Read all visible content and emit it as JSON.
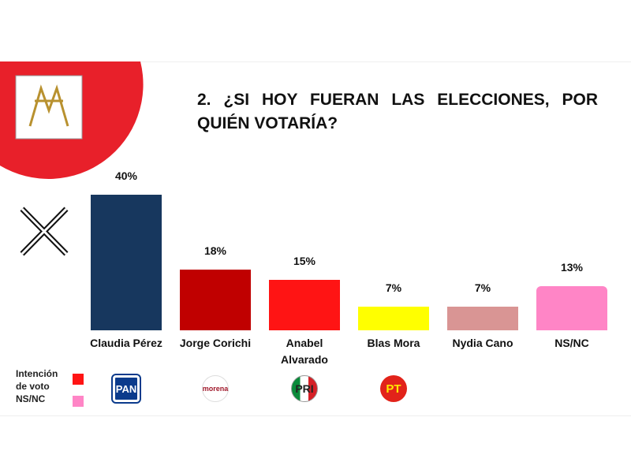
{
  "chart_data": {
    "type": "bar",
    "title": "2. ¿SI HOY FUERAN LAS ELECCIONES, POR QUIÉN VOTARÍA?",
    "categories": [
      "Claudia Pérez",
      "Jorge Corichi",
      "Anabel Alvarado",
      "Blas Mora",
      "Nydia Cano",
      "NS/NC"
    ],
    "values": [
      40,
      18,
      15,
      7,
      7,
      13
    ],
    "value_labels": [
      "40%",
      "18%",
      "15%",
      "7%",
      "7%",
      "13%"
    ],
    "colors": [
      "#17375e",
      "#c00000",
      "#ff1414",
      "#ffff00",
      "#d99594",
      "#ff85c6"
    ],
    "legend": [
      {
        "name": "Intención de voto",
        "color": "#ff1414"
      },
      {
        "name": "NS/NC",
        "color": "#ff85c6"
      }
    ],
    "logos": [
      "PAN",
      "morena",
      "PRI",
      "PT"
    ]
  }
}
